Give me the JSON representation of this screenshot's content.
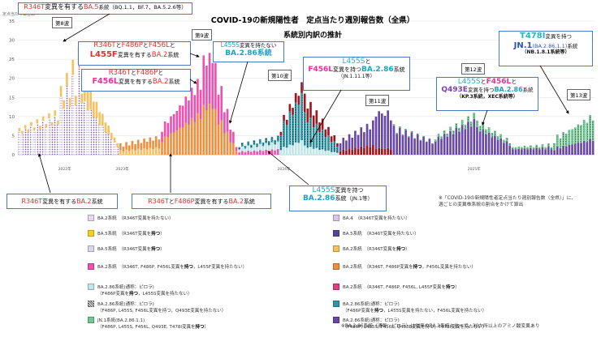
{
  "chart_data": {
    "type": "bar",
    "stacked": true,
    "title": "COVID-19の新規陽性者　定点当たり週別報告数（全県）",
    "subtitle": "系統別内訳の推計",
    "ylabel": "定点当たり報告数",
    "ylim": [
      0,
      35
    ],
    "yticks": [
      0,
      5,
      10,
      15,
      20,
      25,
      30,
      35
    ],
    "grid": true,
    "year_labels": [
      "2022年",
      "2023年",
      "2024年",
      "2025年"
    ],
    "series_order": [
      "ba2",
      "ba5",
      "ba2_r346t",
      "ba2_r346t_f486p",
      "ba2_l455f",
      "ba286",
      "jn1",
      "ba286_l455s_f456l",
      "ba286_q493e",
      "jn1_t478i"
    ],
    "series_colors": {
      "ba2": "#ead8f0",
      "ba5": "#f6d020",
      "ba2_r346t": "#f7c060",
      "ba2_r346t_f486p": "#f08f3c",
      "ba2_l455f": "#f050b0",
      "ba286": "#bfe6ea",
      "jn1": "#2e96a8",
      "ba286_l455s_f456l": "#a0161c",
      "ba286_q493e": "#6848a4",
      "jn1_t478i": "#74c494"
    },
    "series_patterns": {
      "ba5": "#7a5aa8",
      "jn1": "#0d5563",
      "jn1_t478i": "#2f8a4e"
    },
    "segments": [
      {
        "n": 14,
        "start": [
          7,
          6
        ],
        "end": [
          12,
          9
        ],
        "mix": {
          "ba5": 0.88,
          "ba2_r346t": 0.12
        }
      },
      {
        "n": 8,
        "start": [
          18,
          14
        ],
        "end": [
          30,
          16
        ],
        "mix": {
          "ba5": 0.84,
          "ba2_r346t": 0.16
        }
      },
      {
        "n": 12,
        "start": [
          20,
          18
        ],
        "end": [
          3,
          3
        ],
        "mix": {
          "ba5": 0.7,
          "ba2_r346t": 0.3
        }
      },
      {
        "n": 14,
        "start": [
          3,
          2
        ],
        "end": [
          5,
          4
        ],
        "mix": {
          "ba2_r346t_f486p": 0.6,
          "ba2_r346t": 0.4
        }
      },
      {
        "n": 14,
        "start": [
          6,
          8
        ],
        "end": [
          21,
          17
        ],
        "mix": {
          "ba2_r346t_f486p": 0.55,
          "ba2_l455f": 0.45
        }
      },
      {
        "n": 4,
        "start": [
          26,
          23
        ],
        "end": [
          27,
          24
        ],
        "mix": {
          "ba2_l455f": 0.5,
          "ba2_r346t_f486p": 0.5
        }
      },
      {
        "n": 8,
        "start": [
          24,
          18
        ],
        "end": [
          3,
          2
        ],
        "mix": {
          "ba2_l455f": 0.5,
          "ba2_r346t_f486p": 0.5
        }
      },
      {
        "n": 14,
        "start": [
          2,
          3
        ],
        "end": [
          4,
          5
        ],
        "mix": {
          "ba286": 0.4,
          "jn1": 0.3,
          "ba2_l455f": 0.3
        }
      },
      {
        "n": 8,
        "start": [
          6,
          9
        ],
        "end": [
          17,
          19
        ],
        "mix": {
          "jn1": 0.65,
          "ba286": 0.2,
          "ba286_l455s_f456l": 0.15
        }
      },
      {
        "n": 12,
        "start": [
          16,
          13
        ],
        "end": [
          4,
          3
        ],
        "mix": {
          "jn1": 0.55,
          "ba286_l455s_f456l": 0.3,
          "ba286": 0.15
        }
      },
      {
        "n": 12,
        "start": [
          3,
          4
        ],
        "end": [
          7,
          9
        ],
        "mix": {
          "ba286_q493e": 0.7,
          "ba286_l455s_f456l": 0.3
        }
      },
      {
        "n": 6,
        "start": [
          10,
          12
        ],
        "end": [
          12,
          9
        ],
        "mix": {
          "ba286_q493e": 0.85,
          "ba286_l455s_f456l": 0.15
        }
      },
      {
        "n": 14,
        "start": [
          8,
          6
        ],
        "end": [
          4,
          3
        ],
        "mix": {
          "ba286_q493e": 0.95,
          "jn1_t478i": 0.05
        }
      },
      {
        "n": 14,
        "start": [
          4,
          5
        ],
        "end": [
          9,
          11
        ],
        "mix": {
          "ba286_q493e": 0.85,
          "jn1_t478i": 0.15
        }
      },
      {
        "n": 12,
        "start": [
          9,
          8
        ],
        "end": [
          4,
          3
        ],
        "mix": {
          "ba286_q493e": 0.8,
          "jn1_t478i": 0.2
        }
      },
      {
        "n": 14,
        "start": [
          2,
          2
        ],
        "end": [
          3,
          2
        ],
        "mix": {
          "ba286_q493e": 0.7,
          "jn1_t478i": 0.3
        }
      },
      {
        "n": 14,
        "start": [
          3,
          5
        ],
        "end": [
          11,
          9
        ],
        "mix": {
          "jn1_t478i": 0.6,
          "ba286_q493e": 0.4
        }
      }
    ],
    "annotations": {
      "wave8": "第8波",
      "wave9": "第9波",
      "wave10": "第10波",
      "wave11": "第11波",
      "wave12": "第12波",
      "wave13": "第13波"
    }
  },
  "callouts": {
    "ba5_r346t": {
      "a": "R346T",
      "b": "変異を有する",
      "c": "BA.5",
      "d": "系統（BQ.1.1，BF.7，BA.5.2.6等）"
    },
    "l455f": {
      "l1a": "R346T",
      "l1b": "と",
      "l1c": "F486P",
      "l1d": "と",
      "l1e": "F456L",
      "l1f": "と",
      "l2a": "L455F",
      "l2b": "変異を有する",
      "l2c": "BA.2",
      "l2d": "系統"
    },
    "f456l": {
      "l1a": "R346T",
      "l1b": "と",
      "l1c": "F486P",
      "l1d": "と",
      "l2a": "F456L",
      "l2b": "変異を有する",
      "l2c": "BA.2",
      "l2d": "系統"
    },
    "l455s_no": {
      "l1a": "L455S",
      "l1b": "変異を持たない",
      "l2": "BA.2.86系統"
    },
    "l455s_f456l": {
      "l1a": "L455S",
      "l1b": "と",
      "l2a": "F456L",
      "l2b": "変異を持つ",
      "l2c": "BA.2.86",
      "l2d": "系統",
      "l3": "（JN.1.11.1等）"
    },
    "q493e": {
      "l1a": "L455S",
      "l1b": "と",
      "l1c": "F456L",
      "l1d": "と",
      "l2a": "Q493E",
      "l2b": "変異を持つ",
      "l2c": "BA.2.86",
      "l2d": "系統",
      "l3": "（KP.3系統，XEC系統等）"
    },
    "t478i": {
      "l1a": "T478I",
      "l1b": "変異を持つ",
      "l2a": "JN.1",
      "l2b": "(BA.2.86.1.1)",
      "l2c": "系統",
      "l3": "（NB.1.8.1系統等）"
    },
    "r346t_ba2": {
      "a": "R346T",
      "b": "変異を有する",
      "c": "BA.2",
      "d": "系統"
    },
    "r346t_f486p": {
      "a": "R346T",
      "b": "と",
      "c": "F486P",
      "d": "変異を有する",
      "e": "BA.2",
      "f": "系統"
    },
    "l455s_jn1": {
      "l1a": "L455S",
      "l1b": "変異を持つ",
      "l2a": "BA.2.86",
      "l2b": "系統",
      "l2c": "（JN.1等）"
    }
  },
  "note": {
    "line1": "※「COVID-19の新規陽性者定点当たり週別報告数（全県）」に、",
    "line2": "週ごとの変異株系統の割合をかけて算出"
  },
  "legend": {
    "left": [
      {
        "key": "ba2",
        "a": "BA.2系統",
        "b": "（R346T変異を持たない）"
      },
      {
        "key": "ba5",
        "a": "BA.5系統",
        "b": "（R346T変異を",
        "c": "持つ",
        "d": "）"
      },
      {
        "key": "ba5p",
        "a": "BA.5系統",
        "b": "（R346T変異を",
        "c": "持つ",
        "d": "）"
      },
      {
        "key": "ba2_l455f",
        "a": "BA.2系統",
        "b": "（R346T, F486P, F456L変異を",
        "c": "持つ",
        "d": "，L455F変異を持たない）"
      },
      {
        "key": "ba286",
        "a": "BA.2.86系統(通称：ピロラ)",
        "b2": "（F486P変異を",
        "c": "持つ",
        "d": "，L455S変異を持たない）"
      },
      {
        "key": "ba286b",
        "a": "BA.2.86系統(通称：ピロラ)",
        "b2": "（F486P, L455S, F456L変異を持つ，Q493E変異を持たない）"
      },
      {
        "key": "jn1_t478i",
        "a": "JN.1系統(BA.2.86.1.1)",
        "b2": "（F486P, L455S, F456L, Q493E, T478I変異を",
        "c": "持つ",
        "d": "）"
      }
    ],
    "right": [
      {
        "key": "ba4",
        "a": "BA.4",
        "b": "（R346T変異を持たない）"
      },
      {
        "key": "ba5n",
        "a": "BA.5系統",
        "b": "（R346T変異を持たない）"
      },
      {
        "key": "ba2_r346t",
        "a": "BA.2系統",
        "b": "（R346T変異を",
        "c": "持つ",
        "d": "）"
      },
      {
        "key": "ba2_r346t_f486p",
        "a": "BA.2系統",
        "b": "（R346T, F486P変異を",
        "c": "持つ",
        "d": "，F456L変異を持たない）"
      },
      {
        "key": "ba2_l455f2",
        "a": "BA.2系統",
        "b": "（R346T, F486P, F456L, L455F変異を",
        "c": "持つ",
        "d": "）"
      },
      {
        "key": "jn1",
        "a": "BA.2.86系統(通称：ピロラ)",
        "b2": "（F486P変異を",
        "c": "持つ",
        "d": "，L455S変異を持たない，F456L変異を持たない）"
      },
      {
        "key": "ba286_q493e",
        "a": "BA.2.86系統(通称：ピロラ)",
        "b2": "（F486P, L455S, F456L, Q493E変異を持つ，T478I変異を持たない）"
      }
    ],
    "footnote": "※BA.2.86系統（通称：ピロラ）は従来のBA.2系統と比べて，30か所以上のアミノ酸変異あり"
  }
}
